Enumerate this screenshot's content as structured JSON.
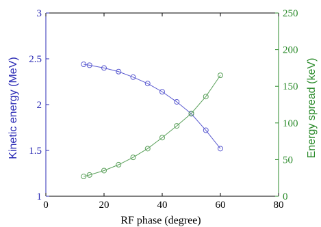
{
  "chart_data": {
    "type": "line",
    "title": "",
    "xlabel": "RF phase (degree)",
    "ylabel_left": "Kinetic energy (MeV)",
    "ylabel_right": "Energy spread (keV)",
    "xlim": [
      0,
      80
    ],
    "ylim_left": [
      1,
      3
    ],
    "ylim_right": [
      0,
      250
    ],
    "x_ticks": [
      "0",
      "20",
      "40",
      "60",
      "80"
    ],
    "y_left_ticks": [
      "1",
      "1.5",
      "2",
      "2.5",
      "3"
    ],
    "y_right_ticks": [
      "0",
      "50",
      "100",
      "150",
      "200",
      "250"
    ],
    "grid": false,
    "colors": {
      "left_axis": "#2b2bb5",
      "right_axis": "#2a8a2a",
      "frame": "#000000"
    },
    "series": [
      {
        "axis": "left",
        "color": "#5a5ad0",
        "marker": "open-circle",
        "x": [
          13,
          15,
          20,
          25,
          30,
          35,
          40,
          45,
          50,
          55,
          60
        ],
        "y": [
          2.44,
          2.43,
          2.4,
          2.36,
          2.3,
          2.23,
          2.14,
          2.03,
          1.9,
          1.72,
          1.52
        ]
      },
      {
        "axis": "right",
        "color": "#5aa05a",
        "marker": "open-circle",
        "x": [
          13,
          15,
          20,
          25,
          30,
          35,
          40,
          45,
          50,
          55,
          60
        ],
        "y": [
          27,
          29,
          35,
          43,
          53,
          65,
          80,
          96,
          113,
          136,
          165
        ]
      }
    ]
  }
}
